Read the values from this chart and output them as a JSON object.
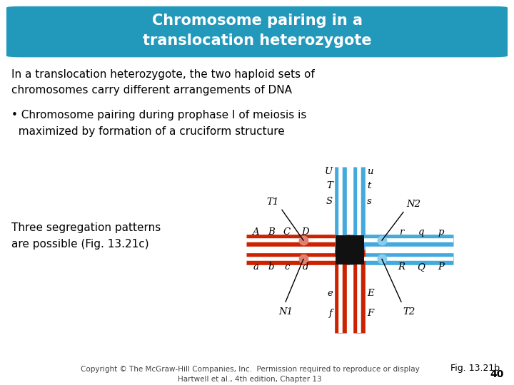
{
  "title": "Chromosome pairing in a\ntranslocation heterozygote",
  "title_color": "#ffffff",
  "title_bg": "#2299bb",
  "body_bg": "#ffffff",
  "body_text1": "In a translocation heterozygote, the two haploid sets of\nchromosomes carry different arrangements of DNA",
  "body_bullet": "• Chromosome pairing during prophase I of meiosis is\n  maximized by formation of a cruciform structure",
  "left_text": "Three segregation patterns\nare possible (Fig. 13.21c)",
  "fig_label": "Fig. 13.21b",
  "footer": "Copyright © The McGraw-Hill Companies, Inc.  Permission required to reproduce or display\nHartwell et al., 4th edition, Chapter 13",
  "page_num": "40",
  "red": "#cc2200",
  "blue": "#44aadd",
  "dark": "#111111",
  "cen_red": "#e08070",
  "cen_blue": "#88ccee"
}
